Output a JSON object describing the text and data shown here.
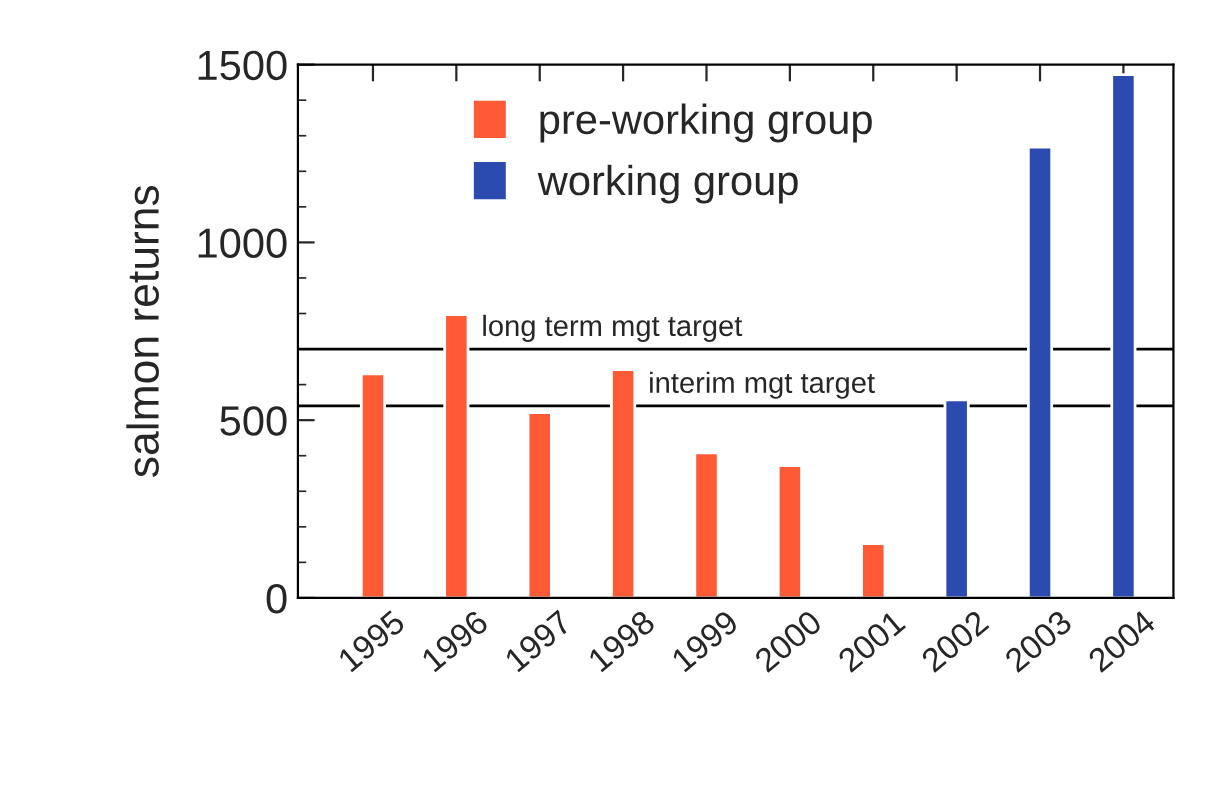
{
  "chart_data": {
    "type": "bar",
    "ylabel": "salmon returns",
    "categories": [
      "1995",
      "1996",
      "1997",
      "1998",
      "1999",
      "2000",
      "2001",
      "2002",
      "2003",
      "2004"
    ],
    "series": [
      {
        "name": "pre-working group",
        "color": "#ff5a36",
        "values": [
          630,
          797,
          521,
          642,
          408,
          372,
          153,
          null,
          null,
          null
        ]
      },
      {
        "name": "working group",
        "color": "#2b4bb0",
        "values": [
          null,
          null,
          null,
          null,
          null,
          null,
          null,
          557,
          1268,
          1472
        ]
      }
    ],
    "ylim": [
      0,
      1500
    ],
    "yticks": [
      0,
      500,
      1000,
      1500
    ],
    "ref_lines": [
      {
        "axis": "y",
        "value": 700,
        "label": "long term mgt target"
      },
      {
        "axis": "y",
        "value": 540,
        "label": "interim mgt target"
      }
    ],
    "legend": "top",
    "grid": false
  }
}
